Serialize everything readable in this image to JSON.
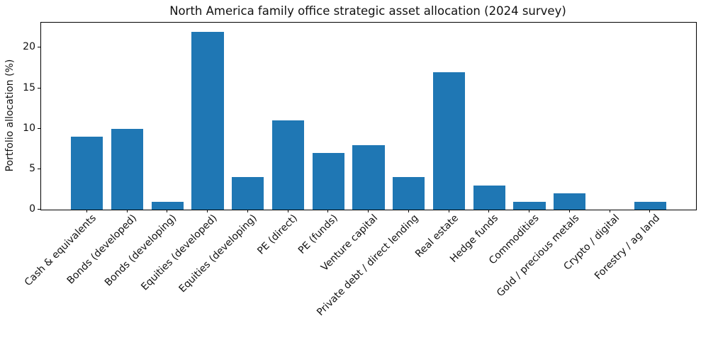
{
  "chart_data": {
    "type": "bar",
    "title": "North America family office strategic asset allocation (2024 survey)",
    "xlabel": "",
    "ylabel": "Portfolio allocation (%)",
    "categories": [
      "Cash & equivalents",
      "Bonds (developed)",
      "Bonds (developing)",
      "Equities (developed)",
      "Equities (developing)",
      "PE (direct)",
      "PE (funds)",
      "Venture capital",
      "Private debt / direct lending",
      "Real estate",
      "Hedge funds",
      "Commodities",
      "Gold / precious metals",
      "Crypto / digital",
      "Forestry / ag land"
    ],
    "values": [
      9,
      10,
      1,
      22,
      4,
      11,
      7,
      8,
      4,
      17,
      3,
      1,
      2,
      0,
      1
    ],
    "yticks": [
      0,
      5,
      10,
      15,
      20
    ],
    "ylim": [
      0,
      23.1
    ],
    "bar_width_fraction": 0.8,
    "x_margin_fraction": 0.05,
    "tick_label_rotation_deg": 45,
    "bar_color": "#1f77b4",
    "axis_color": "#000000",
    "text_color": "#111111",
    "background_color": "#ffffff",
    "grid": false,
    "legend": null
  }
}
